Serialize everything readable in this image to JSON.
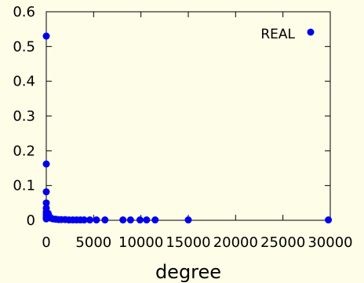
{
  "chart_data": {
    "type": "scatter",
    "title": "",
    "xlabel": "degree",
    "ylabel": "",
    "xlim": [
      0,
      30000
    ],
    "ylim": [
      0,
      0.6
    ],
    "x_ticks": [
      0,
      5000,
      10000,
      15000,
      20000,
      25000,
      30000
    ],
    "x_tick_labels": [
      "0",
      "5000",
      "10000",
      "15000",
      "20000",
      "25000",
      "30000"
    ],
    "y_ticks": [
      0,
      0.1,
      0.2,
      0.3,
      0.4,
      0.5,
      0.6
    ],
    "y_tick_labels": [
      "0",
      "0.1",
      "0.2",
      "0.3",
      "0.4",
      "0.5",
      "0.6"
    ],
    "grid": false,
    "legend_position": "top-right",
    "series": [
      {
        "name": "REAL",
        "color": "#0000ee",
        "points": [
          [
            0,
            0.53
          ],
          [
            0,
            0.162
          ],
          [
            0,
            0.082
          ],
          [
            0,
            0.05
          ],
          [
            0,
            0.035
          ],
          [
            0,
            0.025
          ],
          [
            0,
            0.018
          ],
          [
            0,
            0.012
          ],
          [
            0,
            0.008
          ],
          [
            0,
            0.004
          ],
          [
            200,
            0.02
          ],
          [
            300,
            0.012
          ],
          [
            500,
            0.006
          ],
          [
            700,
            0.004
          ],
          [
            1000,
            0.003
          ],
          [
            1300,
            0.002
          ],
          [
            1600,
            0.002
          ],
          [
            2000,
            0.002
          ],
          [
            2400,
            0.001
          ],
          [
            2800,
            0.001
          ],
          [
            3200,
            0.001
          ],
          [
            3600,
            0.001
          ],
          [
            4000,
            0.001
          ],
          [
            4600,
            0.001
          ],
          [
            5300,
            0.001
          ],
          [
            6200,
            0.001
          ],
          [
            8100,
            0.001
          ],
          [
            8900,
            0.001
          ],
          [
            9900,
            0.001
          ],
          [
            10600,
            0.001
          ],
          [
            11500,
            0.001
          ],
          [
            15000,
            0.001
          ],
          [
            29800,
            0.001
          ]
        ]
      }
    ]
  }
}
